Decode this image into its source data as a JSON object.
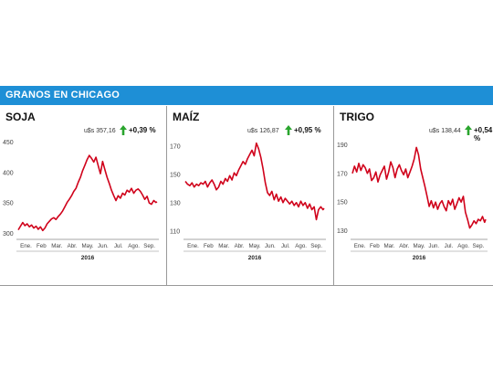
{
  "banner": {
    "title": "GRANOS EN CHICAGO"
  },
  "colors": {
    "banner": "#1e8fd6",
    "line": "#d0021b",
    "arrow": "#2aa52e",
    "axis": "#444444"
  },
  "chart_data": [
    {
      "type": "line",
      "title": "SOJA",
      "price": "u$s 357,16",
      "change": "+0,39 %",
      "change_direction": "up",
      "months": [
        "Ene.",
        "Feb",
        "Mar.",
        "Abr.",
        "May.",
        "Jun.",
        "Jul.",
        "Ago.",
        "Sep."
      ],
      "year": "2016",
      "yticks": [
        300,
        350,
        400,
        450
      ],
      "ylim": [
        295,
        455
      ],
      "x": [
        0,
        4,
        8,
        12,
        16,
        20,
        24,
        28,
        32,
        36,
        40,
        44,
        48,
        52,
        56,
        60,
        64,
        68,
        72,
        76,
        80,
        84,
        88,
        92,
        96,
        100,
        104,
        108,
        112,
        116,
        120,
        124,
        128,
        132,
        136,
        140,
        144,
        148,
        152,
        156,
        160,
        164,
        168,
        172,
        176,
        180,
        184,
        188,
        192,
        196,
        200,
        204,
        208,
        212,
        216,
        220,
        224,
        228,
        232,
        236,
        240,
        244,
        248,
        250
      ],
      "values": [
        306,
        312,
        318,
        313,
        316,
        311,
        314,
        309,
        312,
        307,
        311,
        305,
        309,
        316,
        320,
        324,
        326,
        323,
        328,
        332,
        337,
        344,
        351,
        356,
        362,
        369,
        374,
        384,
        392,
        403,
        412,
        421,
        428,
        423,
        417,
        425,
        411,
        398,
        418,
        405,
        392,
        382,
        371,
        362,
        354,
        362,
        358,
        366,
        363,
        371,
        368,
        374,
        366,
        371,
        373,
        369,
        363,
        356,
        361,
        350,
        348,
        354,
        351,
        352
      ]
    },
    {
      "type": "line",
      "title": "MAÍZ",
      "price": "u$s 126,87",
      "change": "+0,95 %",
      "change_direction": "up",
      "months": [
        "Ene.",
        "Feb",
        "Mar.",
        "Abr.",
        "May.",
        "Jun.",
        "Jul.",
        "Ago.",
        "Sep."
      ],
      "year": "2016",
      "yticks": [
        110,
        130,
        150,
        170
      ],
      "ylim": [
        106,
        175
      ],
      "x": [
        0,
        4,
        8,
        12,
        16,
        20,
        24,
        28,
        32,
        36,
        40,
        44,
        48,
        52,
        56,
        60,
        64,
        68,
        72,
        76,
        80,
        84,
        88,
        92,
        96,
        100,
        104,
        108,
        112,
        116,
        120,
        124,
        128,
        132,
        136,
        140,
        144,
        148,
        152,
        156,
        160,
        164,
        168,
        172,
        176,
        180,
        184,
        188,
        192,
        196,
        200,
        204,
        208,
        212,
        216,
        220,
        224,
        228,
        232,
        236,
        240,
        244,
        248,
        250
      ],
      "values": [
        145,
        143,
        142,
        144,
        141,
        143,
        142,
        144,
        143,
        145,
        141,
        144,
        146,
        143,
        139,
        141,
        145,
        143,
        147,
        145,
        149,
        146,
        151,
        149,
        153,
        156,
        159,
        157,
        161,
        164,
        167,
        163,
        172,
        168,
        162,
        154,
        144,
        137,
        135,
        138,
        132,
        136,
        131,
        134,
        130,
        133,
        131,
        129,
        131,
        128,
        130,
        127,
        131,
        128,
        130,
        126,
        129,
        125,
        127,
        118,
        125,
        127,
        125,
        126
      ]
    },
    {
      "type": "line",
      "title": "TRIGO",
      "price": "u$s 138,44",
      "change": "+0,54 %",
      "change_direction": "up",
      "months": [
        "Ene.",
        "Feb",
        "Mar.",
        "Abr.",
        "May.",
        "Jun.",
        "Jul.",
        "Ago.",
        "Sep."
      ],
      "year": "2016",
      "yticks": [
        130,
        150,
        170,
        190
      ],
      "ylim": [
        126,
        194
      ],
      "x": [
        0,
        4,
        8,
        12,
        16,
        20,
        24,
        28,
        32,
        36,
        40,
        44,
        48,
        52,
        56,
        60,
        64,
        68,
        72,
        76,
        80,
        84,
        88,
        92,
        96,
        100,
        104,
        108,
        112,
        116,
        120,
        124,
        128,
        132,
        136,
        140,
        144,
        148,
        152,
        156,
        160,
        164,
        168,
        172,
        176,
        180,
        184,
        188,
        192,
        196,
        200,
        204,
        208,
        212,
        216,
        220,
        224,
        228,
        232,
        236,
        240,
        244,
        248,
        250
      ],
      "values": [
        170,
        175,
        171,
        177,
        172,
        176,
        174,
        170,
        173,
        165,
        167,
        171,
        164,
        169,
        172,
        175,
        166,
        171,
        178,
        174,
        167,
        173,
        176,
        172,
        169,
        173,
        167,
        171,
        175,
        180,
        188,
        183,
        173,
        167,
        161,
        154,
        147,
        151,
        146,
        150,
        145,
        149,
        151,
        147,
        144,
        151,
        148,
        152,
        145,
        149,
        153,
        150,
        154,
        143,
        138,
        132,
        134,
        137,
        135,
        138,
        137,
        140,
        136,
        138
      ]
    }
  ]
}
